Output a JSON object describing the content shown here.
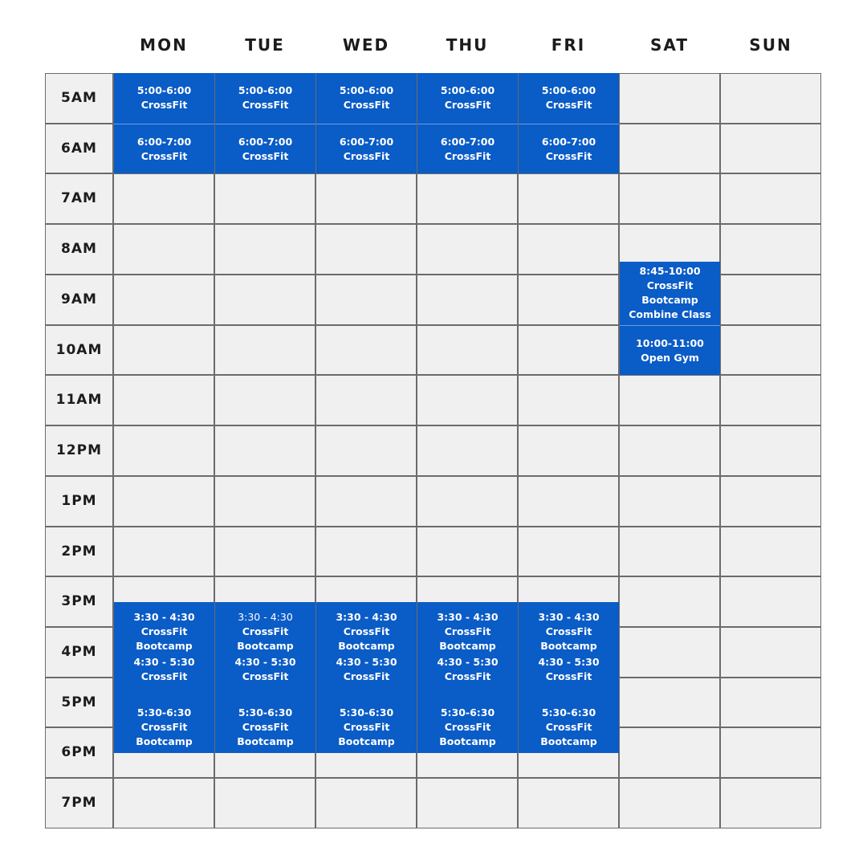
{
  "days": [
    "MON",
    "TUE",
    "WED",
    "THU",
    "FRI",
    "SAT",
    "SUN"
  ],
  "times": [
    "5AM",
    "6AM",
    "7AM",
    "8AM",
    "9AM",
    "10AM",
    "11AM",
    "12PM",
    "1PM",
    "2PM",
    "3PM",
    "4PM",
    "5PM",
    "6PM",
    "7PM"
  ],
  "colors": {
    "event": "#0a5cc7",
    "cell": "#f0f0f0",
    "grid_line": "#6b6b6b"
  },
  "events": [
    {
      "day": 0,
      "start": 5,
      "end": 6,
      "lines": [
        "5:00-6:00",
        "CrossFit"
      ]
    },
    {
      "day": 0,
      "start": 6,
      "end": 7,
      "lines": [
        "6:00-7:00",
        "CrossFit"
      ]
    },
    {
      "day": 1,
      "start": 5,
      "end": 6,
      "lines": [
        "5:00-6:00",
        "CrossFit"
      ]
    },
    {
      "day": 1,
      "start": 6,
      "end": 7,
      "lines": [
        "6:00-7:00",
        "CrossFit"
      ]
    },
    {
      "day": 2,
      "start": 5,
      "end": 6,
      "lines": [
        "5:00-6:00",
        "CrossFit"
      ]
    },
    {
      "day": 2,
      "start": 6,
      "end": 7,
      "lines": [
        "6:00-7:00",
        "CrossFit"
      ]
    },
    {
      "day": 3,
      "start": 5,
      "end": 6,
      "lines": [
        "5:00-6:00",
        "CrossFit"
      ]
    },
    {
      "day": 3,
      "start": 6,
      "end": 7,
      "lines": [
        "6:00-7:00",
        "CrossFit"
      ]
    },
    {
      "day": 4,
      "start": 5,
      "end": 6,
      "lines": [
        "5:00-6:00",
        "CrossFit"
      ]
    },
    {
      "day": 4,
      "start": 6,
      "end": 7,
      "lines": [
        "6:00-7:00",
        "CrossFit"
      ]
    },
    {
      "day": 5,
      "start": 8.75,
      "end": 10,
      "lines": [
        "8:45-10:00",
        "CrossFit",
        "Bootcamp",
        "Combine Class"
      ]
    },
    {
      "day": 5,
      "start": 10,
      "end": 11,
      "lines": [
        "10:00-11:00",
        "Open Gym"
      ]
    },
    {
      "day": 0,
      "start": 15.5,
      "end": 16.5,
      "lines": [
        "3:30 - 4:30",
        "CrossFit",
        "Bootcamp"
      ]
    },
    {
      "day": 0,
      "start": 16.5,
      "end": 17.5,
      "lines": [
        "4:30 - 5:30",
        "CrossFit"
      ]
    },
    {
      "day": 0,
      "start": 17.5,
      "end": 18.5,
      "lines": [
        "5:30-6:30",
        "CrossFit",
        "Bootcamp"
      ]
    },
    {
      "day": 1,
      "start": 15.5,
      "end": 16.5,
      "lines": [
        "3:30 - 4:30",
        "CrossFit",
        "Bootcamp"
      ],
      "light_first": true
    },
    {
      "day": 1,
      "start": 16.5,
      "end": 17.5,
      "lines": [
        "4:30 - 5:30",
        "CrossFit"
      ]
    },
    {
      "day": 1,
      "start": 17.5,
      "end": 18.5,
      "lines": [
        "5:30-6:30",
        "CrossFit",
        "Bootcamp"
      ]
    },
    {
      "day": 2,
      "start": 15.5,
      "end": 16.5,
      "lines": [
        "3:30 - 4:30",
        "CrossFit",
        "Bootcamp"
      ]
    },
    {
      "day": 2,
      "start": 16.5,
      "end": 17.5,
      "lines": [
        "4:30 - 5:30",
        "CrossFit"
      ]
    },
    {
      "day": 2,
      "start": 17.5,
      "end": 18.5,
      "lines": [
        "5:30-6:30",
        "CrossFit",
        "Bootcamp"
      ]
    },
    {
      "day": 3,
      "start": 15.5,
      "end": 16.5,
      "lines": [
        "3:30 - 4:30",
        "CrossFit",
        "Bootcamp"
      ]
    },
    {
      "day": 3,
      "start": 16.5,
      "end": 17.5,
      "lines": [
        "4:30 - 5:30",
        "CrossFit"
      ]
    },
    {
      "day": 3,
      "start": 17.5,
      "end": 18.5,
      "lines": [
        "5:30-6:30",
        "CrossFit",
        "Bootcamp"
      ]
    },
    {
      "day": 4,
      "start": 15.5,
      "end": 16.5,
      "lines": [
        "3:30 - 4:30",
        "CrossFit",
        "Bootcamp"
      ]
    },
    {
      "day": 4,
      "start": 16.5,
      "end": 17.5,
      "lines": [
        "4:30 - 5:30",
        "CrossFit"
      ]
    },
    {
      "day": 4,
      "start": 17.5,
      "end": 18.5,
      "lines": [
        "5:30-6:30",
        "CrossFit",
        "Bootcamp"
      ]
    }
  ]
}
